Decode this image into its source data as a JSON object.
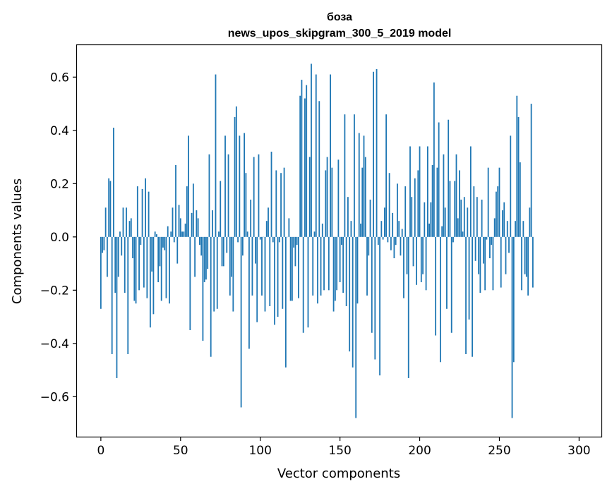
{
  "chart_data": {
    "type": "bar",
    "title_line1": "боза",
    "title_line2": "news_upos_skipgram_300_5_2019 model",
    "xlabel": "Vector components",
    "ylabel": "Components values",
    "xlim": [
      -15,
      314
    ],
    "ylim": [
      -0.75,
      0.72
    ],
    "x_ticks": [
      0,
      50,
      100,
      150,
      200,
      250,
      300
    ],
    "x_tick_labels": [
      "0",
      "50",
      "100",
      "150",
      "200",
      "250",
      "300"
    ],
    "y_ticks": [
      -0.6,
      -0.4,
      -0.2,
      0.0,
      0.2,
      0.4,
      0.6
    ],
    "y_tick_labels": [
      "−0.6",
      "−0.4",
      "−0.2",
      "0.0",
      "0.2",
      "0.4",
      "0.6"
    ],
    "bar_color": "#1f77b4",
    "values": [
      -0.27,
      -0.06,
      -0.05,
      0.11,
      -0.15,
      0.22,
      0.21,
      -0.44,
      0.41,
      -0.21,
      -0.53,
      -0.15,
      0.02,
      -0.07,
      0.11,
      -0.21,
      0.11,
      -0.44,
      0.06,
      0.07,
      -0.08,
      -0.24,
      -0.25,
      0.19,
      -0.2,
      -0.03,
      0.18,
      -0.19,
      0.22,
      -0.23,
      0.17,
      -0.34,
      -0.13,
      -0.29,
      0.02,
      0.01,
      -0.17,
      -0.11,
      -0.24,
      -0.04,
      -0.05,
      -0.23,
      0.04,
      -0.25,
      0.02,
      0.11,
      -0.02,
      0.27,
      -0.1,
      0.12,
      0.07,
      0.02,
      0.02,
      0.05,
      0.19,
      0.38,
      -0.35,
      0.09,
      0.2,
      -0.15,
      0.1,
      0.07,
      -0.03,
      -0.07,
      -0.39,
      -0.17,
      -0.16,
      -0.12,
      0.31,
      -0.45,
      0.1,
      -0.28,
      0.61,
      -0.27,
      0.02,
      0.21,
      -0.11,
      -0.11,
      0.38,
      -0.06,
      0.31,
      -0.22,
      -0.15,
      -0.28,
      0.45,
      0.49,
      -0.02,
      0.38,
      -0.64,
      -0.07,
      0.39,
      0.24,
      0.02,
      -0.42,
      0.14,
      -0.22,
      0.3,
      -0.1,
      -0.32,
      0.31,
      -0.01,
      -0.22,
      0.0,
      -0.28,
      0.06,
      0.11,
      -0.26,
      0.32,
      -0.02,
      -0.33,
      0.25,
      -0.3,
      -0.02,
      0.24,
      -0.27,
      0.26,
      -0.49,
      0.0,
      0.07,
      -0.24,
      -0.24,
      -0.04,
      -0.11,
      -0.03,
      -0.23,
      0.53,
      0.59,
      -0.36,
      0.52,
      0.57,
      -0.34,
      0.3,
      0.65,
      -0.22,
      0.02,
      0.61,
      -0.25,
      0.51,
      -0.22,
      0.05,
      -0.2,
      0.25,
      0.3,
      -0.2,
      0.61,
      0.26,
      -0.28,
      -0.24,
      -0.2,
      0.29,
      -0.17,
      -0.03,
      -0.21,
      0.46,
      -0.26,
      0.15,
      -0.43,
      0.06,
      -0.49,
      0.46,
      -0.68,
      -0.25,
      0.39,
      0.05,
      0.26,
      0.38,
      0.3,
      -0.22,
      -0.07,
      0.14,
      -0.36,
      0.62,
      -0.46,
      0.63,
      -0.03,
      -0.52,
      0.06,
      -0.01,
      0.11,
      0.46,
      -0.02,
      0.24,
      -0.05,
      0.09,
      -0.08,
      -0.03,
      0.2,
      0.06,
      -0.07,
      0.03,
      -0.23,
      0.19,
      -0.14,
      -0.53,
      0.34,
      0.15,
      -0.11,
      0.22,
      -0.18,
      0.25,
      0.34,
      -0.17,
      -0.14,
      0.13,
      -0.2,
      0.34,
      0.05,
      0.13,
      0.27,
      0.58,
      -0.37,
      0.26,
      0.43,
      -0.47,
      0.04,
      0.31,
      0.11,
      -0.27,
      0.44,
      0.21,
      -0.36,
      -0.02,
      0.21,
      0.31,
      0.07,
      0.25,
      0.14,
      0.02,
      0.15,
      -0.44,
      0.11,
      -0.31,
      0.34,
      -0.45,
      0.19,
      -0.09,
      0.15,
      -0.14,
      -0.21,
      0.14,
      -0.1,
      -0.2,
      -0.01,
      0.26,
      -0.08,
      -0.03,
      -0.2,
      0.07,
      0.17,
      0.19,
      0.26,
      -0.19,
      0.1,
      0.13,
      -0.14,
      0.06,
      -0.06,
      0.38,
      -0.68,
      -0.47,
      0.06,
      0.53,
      0.45,
      0.28,
      -0.2,
      0.06,
      -0.14,
      -0.15,
      -0.22,
      0.11,
      0.5,
      -0.19
    ]
  }
}
